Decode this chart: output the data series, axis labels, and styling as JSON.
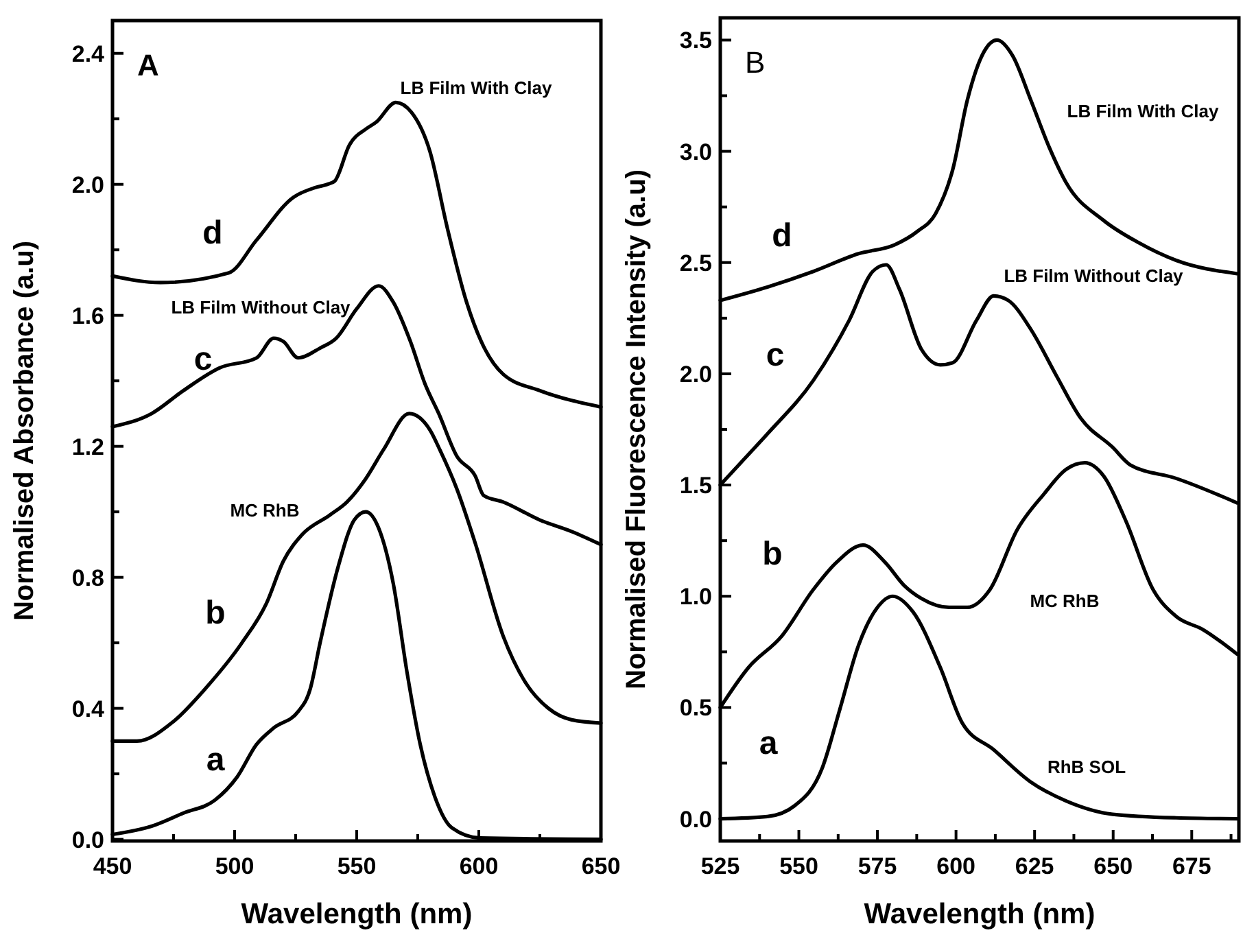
{
  "chart_data": [
    {
      "type": "line",
      "title": "A",
      "xlabel": "Wavelength (nm)",
      "ylabel": "Normalised Absorbance (a.u)",
      "xlim": [
        450,
        650
      ],
      "ylim": [
        -0.005,
        2.5
      ],
      "xticks": [
        450,
        {
          "value": 475,
          "label": null
        },
        500,
        {
          "value": 525,
          "label": null
        },
        550,
        {
          "value": 575,
          "label": null
        },
        600,
        {
          "value": 625,
          "label": null
        },
        650
      ],
      "yticks": [
        {
          "value": 0,
          "label": "0.0"
        },
        {
          "value": 0.2,
          "label": null
        },
        {
          "value": 0.4,
          "label": "0.4"
        },
        {
          "value": 0.6,
          "label": null
        },
        {
          "value": 0.8,
          "label": "0.8"
        },
        {
          "value": 1.0,
          "label": null
        },
        {
          "value": 1.2,
          "label": "1.2"
        },
        {
          "value": 1.4,
          "label": null
        },
        {
          "value": 1.6,
          "label": "1.6"
        },
        {
          "value": 1.8,
          "label": null
        },
        {
          "value": 2.0,
          "label": "2.0"
        },
        {
          "value": 2.2,
          "label": null
        },
        {
          "value": 2.4,
          "label": "2.4"
        }
      ],
      "grid": false,
      "marker": "none",
      "line_style": "solid",
      "series": [
        {
          "name": "a",
          "color": "#000000",
          "x": [
            450,
            466,
            479,
            492,
            501,
            509,
            516,
            526,
            531,
            535,
            542.5,
            549,
            553.7,
            559,
            565,
            570.6,
            576,
            582,
            589,
            600.5,
            650
          ],
          "values": [
            0.015,
            0.04,
            0.08,
            0.12,
            0.19,
            0.29,
            0.34,
            0.39,
            0.46,
            0.6,
            0.835,
            0.975,
            1.0,
            0.95,
            0.78,
            0.51,
            0.29,
            0.13,
            0.035,
            0.004,
            0
          ]
        },
        {
          "name": "b",
          "color": "#000000",
          "x": [
            450,
            460,
            475,
            488,
            503,
            513,
            520,
            527.6,
            539,
            546,
            553.6,
            561,
            571.5,
            580,
            584,
            591,
            598.5,
            610,
            619,
            628.5,
            638,
            650
          ],
          "values": [
            0.3,
            0.3,
            0.36,
            0.46,
            0.6,
            0.72,
            0.85,
            0.93,
            0.99,
            1.03,
            1.1,
            1.19,
            1.3,
            1.25,
            1.19,
            1.07,
            0.905,
            0.62,
            0.48,
            0.4,
            0.365,
            0.355
          ]
        },
        {
          "name": "c",
          "color": "#000000",
          "x": [
            450,
            466,
            479,
            494,
            509,
            516,
            520,
            526,
            535,
            541.6,
            550,
            559,
            565,
            572,
            578,
            583.6,
            591,
            598.5,
            602,
            610,
            625,
            638,
            650
          ],
          "values": [
            1.26,
            1.3,
            1.37,
            1.44,
            1.47,
            1.53,
            1.52,
            1.47,
            1.5,
            1.53,
            1.62,
            1.69,
            1.64,
            1.52,
            1.39,
            1.3,
            1.17,
            1.11,
            1.05,
            1.03,
            0.975,
            0.94,
            0.9
          ]
        },
        {
          "name": "d",
          "color": "#000000",
          "x": [
            450,
            469.6,
            497.7,
            509,
            524,
            533,
            538,
            541,
            547,
            554,
            558,
            566,
            572.4,
            580,
            587,
            595,
            601,
            610,
            625,
            650
          ],
          "values": [
            1.72,
            1.7,
            1.73,
            1.83,
            1.96,
            1.99,
            2.0,
            2.01,
            2.12,
            2.17,
            2.19,
            2.25,
            2.22,
            2.1,
            1.87,
            1.64,
            1.52,
            1.42,
            1.37,
            1.32
          ]
        }
      ],
      "annotations": [
        "MC RhB",
        "LB Film Without Clay",
        "LB Film With Clay"
      ]
    },
    {
      "type": "line",
      "title": "B",
      "xlabel": "Wavelength (nm)",
      "ylabel": "Normalised Fluorescence Intensity (a.u)",
      "xlim": [
        525,
        690
      ],
      "ylim": [
        -0.1,
        3.6
      ],
      "xticks": [
        525,
        {
          "value": 537.5,
          "label": null
        },
        550,
        {
          "value": 562.5,
          "label": null
        },
        575,
        {
          "value": 587.5,
          "label": null
        },
        600,
        {
          "value": 612.5,
          "label": null
        },
        625,
        {
          "value": 637.5,
          "label": null
        },
        650,
        {
          "value": 662.5,
          "label": null
        },
        675,
        {
          "value": 687.5,
          "label": null
        }
      ],
      "yticks": [
        {
          "value": 0,
          "label": "0.0"
        },
        {
          "value": 0.25,
          "label": null
        },
        {
          "value": 0.5,
          "label": "0.5"
        },
        {
          "value": 0.75,
          "label": null
        },
        {
          "value": 1.0,
          "label": "1.0"
        },
        {
          "value": 1.25,
          "label": null
        },
        {
          "value": 1.5,
          "label": "1.5"
        },
        {
          "value": 1.75,
          "label": null
        },
        {
          "value": 2.0,
          "label": "2.0"
        },
        {
          "value": 2.25,
          "label": null
        },
        {
          "value": 2.5,
          "label": "2.5"
        },
        {
          "value": 2.75,
          "label": null
        },
        {
          "value": 3.0,
          "label": "3.0"
        },
        {
          "value": 3.25,
          "label": null
        },
        {
          "value": 3.5,
          "label": "3.5"
        }
      ],
      "grid": false,
      "marker": "none",
      "line_style": "solid",
      "series": [
        {
          "name": "a",
          "color": "#000000",
          "x": [
            525,
            540,
            548.8,
            557.5,
            563,
            569,
            575,
            579.8,
            586.3,
            595,
            602,
            612,
            623.8,
            635,
            649.8,
            670,
            689.4
          ],
          "values": [
            0,
            0.01,
            0.06,
            0.23,
            0.49,
            0.78,
            0.95,
            1.0,
            0.93,
            0.68,
            0.43,
            0.31,
            0.165,
            0.08,
            0.02,
            0.004,
            0
          ]
        },
        {
          "name": "b",
          "color": "#000000",
          "x": [
            525,
            534,
            544.5,
            554.6,
            561.8,
            570.4,
            577.6,
            583.4,
            589,
            597.8,
            603.6,
            610.8,
            619.5,
            628,
            635,
            641,
            647,
            654,
            662.7,
            670,
            678.6,
            689.4
          ],
          "values": [
            0.5,
            0.68,
            0.82,
            1.03,
            1.15,
            1.23,
            1.15,
            1.05,
            0.99,
            0.95,
            0.95,
            1.03,
            1.3,
            1.46,
            1.57,
            1.6,
            1.54,
            1.34,
            1.03,
            0.91,
            0.85,
            0.74
          ]
        },
        {
          "name": "c",
          "color": "#000000",
          "x": [
            525,
            531.5,
            540,
            554.6,
            566,
            573.5,
            577.8,
            582,
            589,
            595,
            599,
            606.5,
            612,
            616.6,
            623.8,
            632,
            639.7,
            649.8,
            655.5,
            670,
            689.4
          ],
          "values": [
            1.5,
            1.6,
            1.73,
            1.97,
            2.24,
            2.46,
            2.49,
            2.38,
            2.11,
            2.04,
            2.05,
            2.24,
            2.35,
            2.33,
            2.2,
            1.99,
            1.8,
            1.67,
            1.59,
            1.53,
            1.42
          ]
        },
        {
          "name": "d",
          "color": "#000000",
          "x": [
            525,
            540,
            554.6,
            569,
            580.5,
            587.7,
            593.5,
            599,
            603.6,
            609,
            613,
            618,
            623.8,
            629.6,
            635,
            646.9,
            658,
            670,
            689.4
          ],
          "values": [
            2.33,
            2.39,
            2.46,
            2.54,
            2.58,
            2.64,
            2.72,
            2.92,
            3.23,
            3.45,
            3.5,
            3.43,
            3.23,
            3.02,
            2.86,
            2.69,
            2.59,
            2.51,
            2.45
          ]
        }
      ],
      "annotations": [
        "RhB SOL",
        "MC RhB",
        "LB Film Without Clay",
        "LB Film With Clay"
      ]
    }
  ]
}
